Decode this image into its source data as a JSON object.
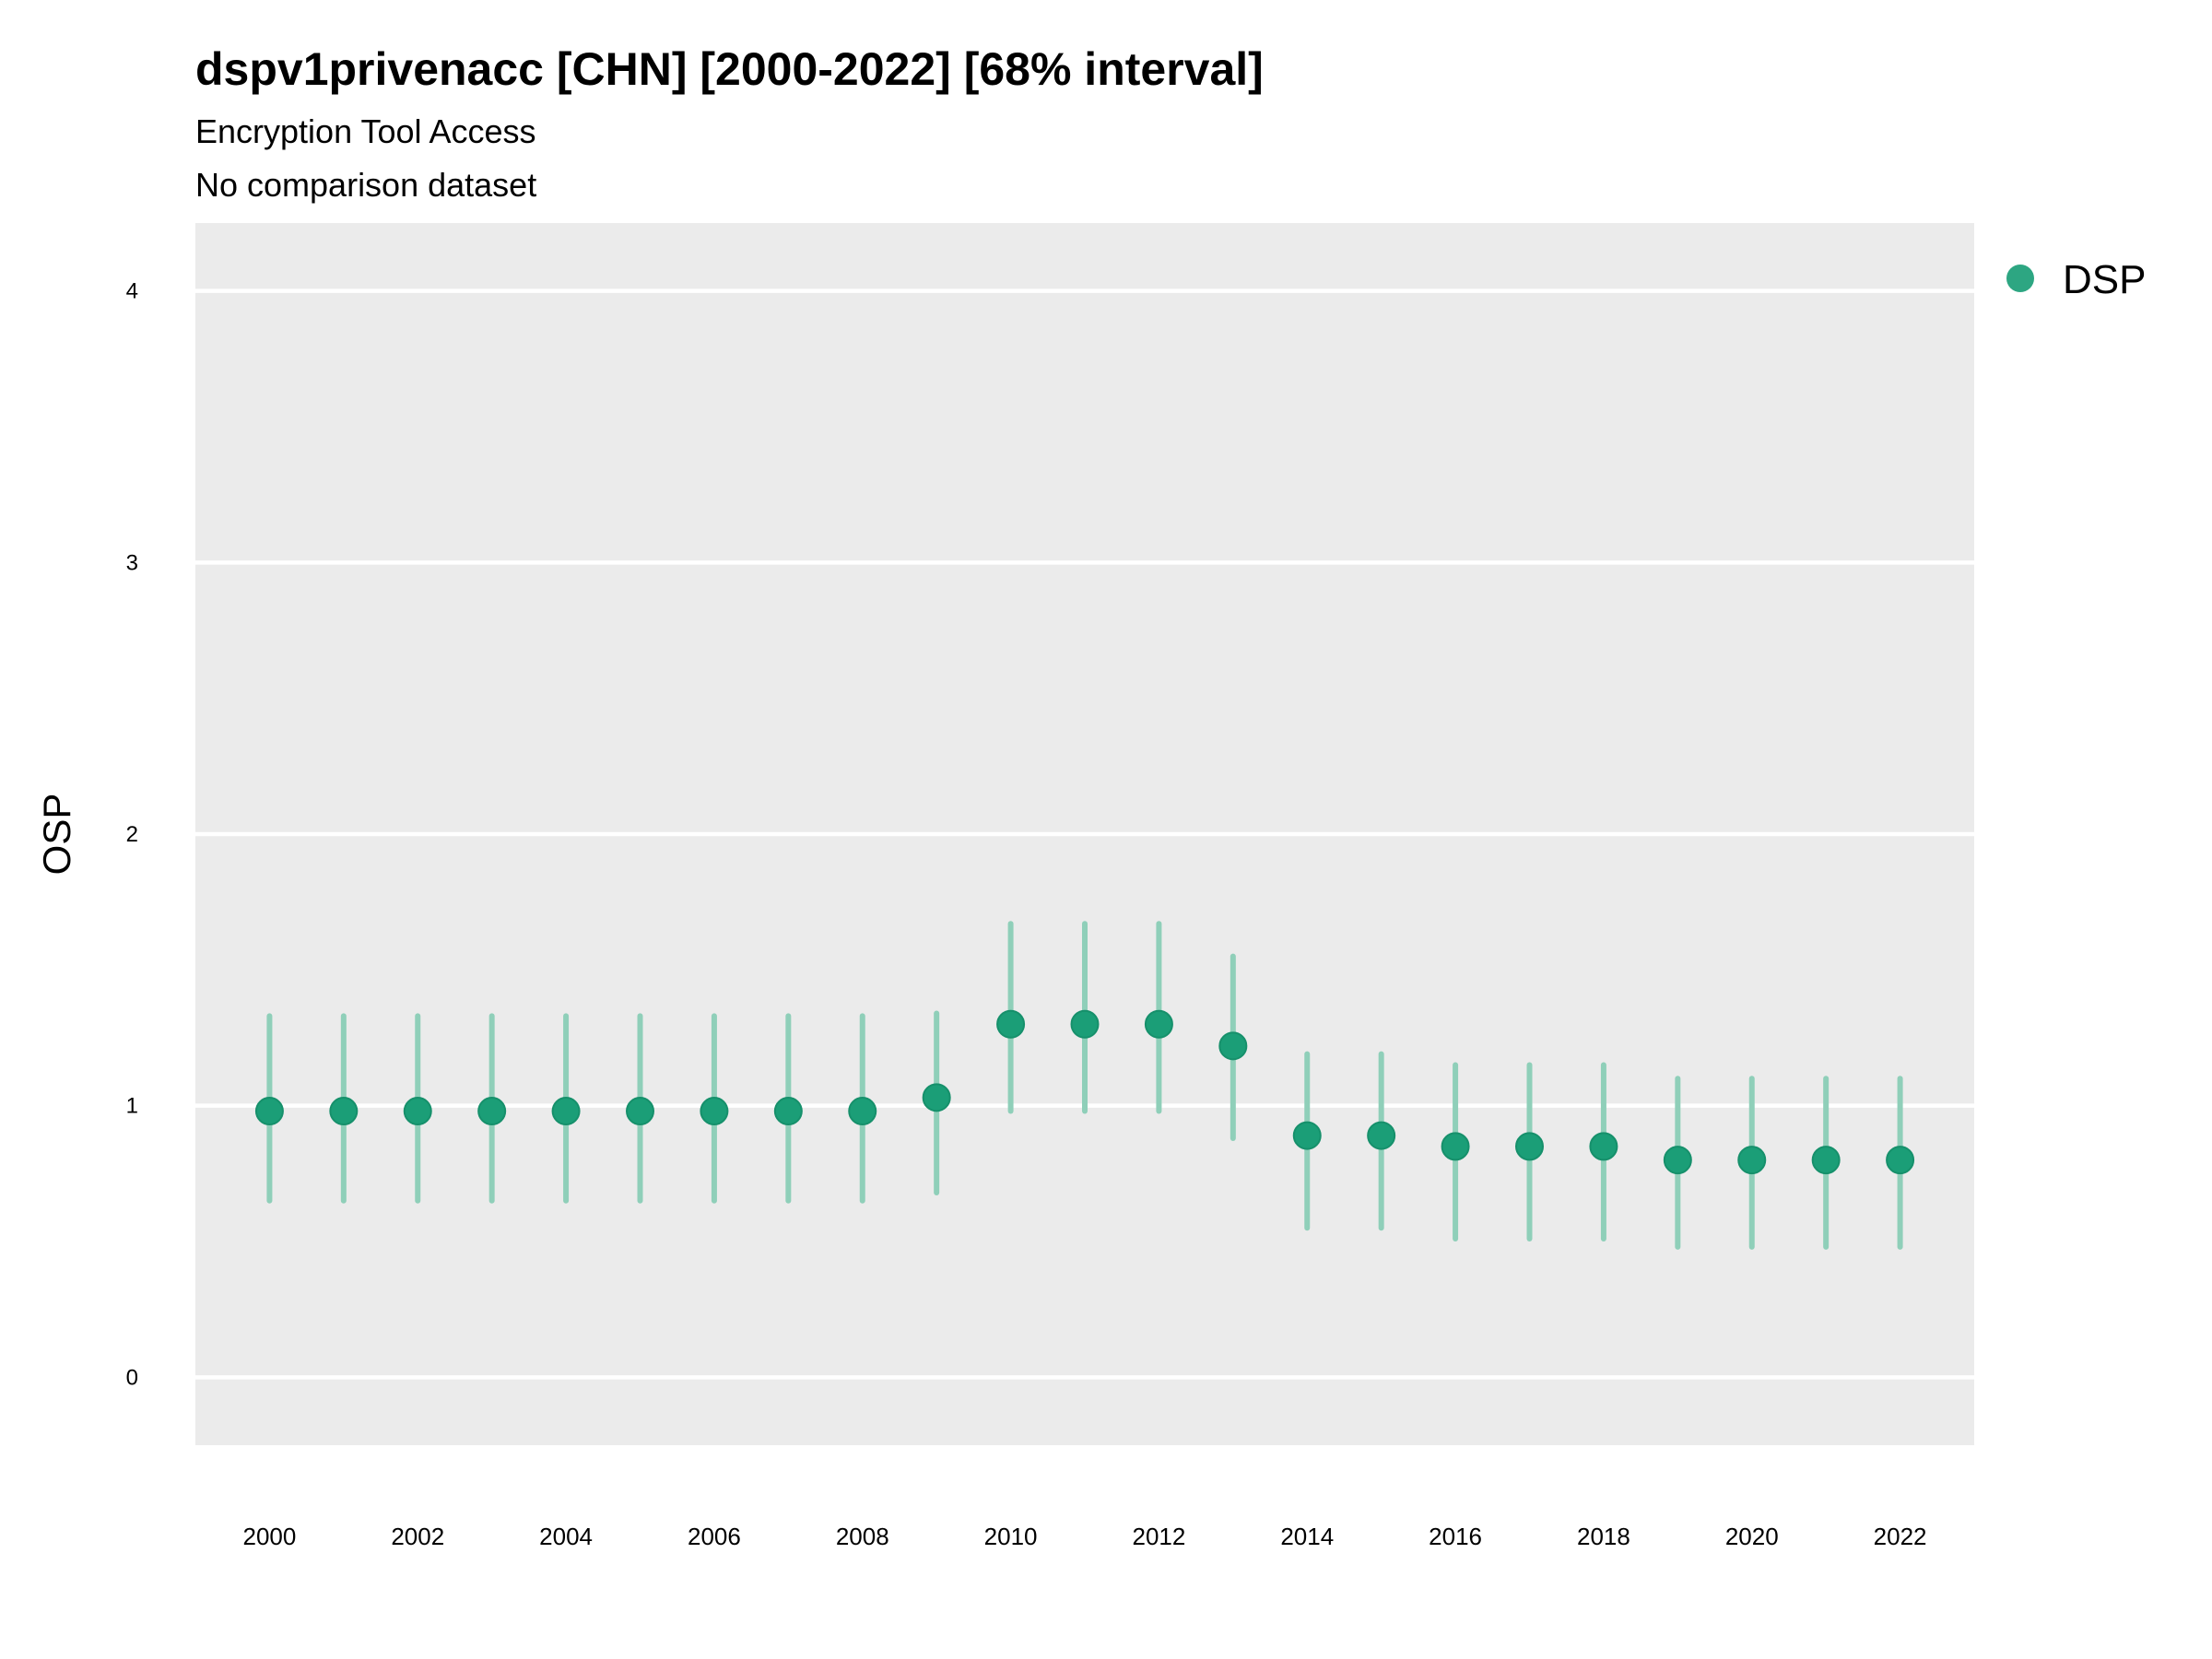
{
  "chart_data": {
    "type": "scatter",
    "title": "dspv1privenacc [CHN] [2000-2022] [68% interval]",
    "subtitle": "Encryption Tool Access",
    "subtitle2": "No comparison dataset",
    "xlabel": "",
    "ylabel": "OSP",
    "xlim": [
      1999.0,
      2023.0
    ],
    "ylim": [
      -0.25,
      4.25
    ],
    "x_ticks": [
      "2000",
      "2002",
      "2004",
      "2006",
      "2008",
      "2010",
      "2012",
      "2014",
      "2016",
      "2018",
      "2020",
      "2022"
    ],
    "y_ticks": [
      "0",
      "1",
      "2",
      "3",
      "4"
    ],
    "grid": true,
    "legend_position": "right",
    "colors": {
      "panel_background": "#ebebeb",
      "grid_line": "#ffffff",
      "point": "#1b9e77",
      "interval": "#8fcfb9"
    },
    "series": [
      {
        "name": "DSP",
        "x": [
          2000,
          2001,
          2002,
          2003,
          2004,
          2005,
          2006,
          2007,
          2008,
          2009,
          2010,
          2011,
          2012,
          2013,
          2014,
          2015,
          2016,
          2017,
          2018,
          2019,
          2020,
          2021,
          2022
        ],
        "values": [
          0.98,
          0.98,
          0.98,
          0.98,
          0.98,
          0.98,
          0.98,
          0.98,
          0.98,
          1.03,
          1.3,
          1.3,
          1.3,
          1.22,
          0.89,
          0.89,
          0.85,
          0.85,
          0.85,
          0.8,
          0.8,
          0.8,
          0.8
        ],
        "lower": [
          0.65,
          0.65,
          0.65,
          0.65,
          0.65,
          0.65,
          0.65,
          0.65,
          0.65,
          0.68,
          0.98,
          0.98,
          0.98,
          0.88,
          0.55,
          0.55,
          0.51,
          0.51,
          0.51,
          0.48,
          0.48,
          0.48,
          0.48
        ],
        "upper": [
          1.33,
          1.33,
          1.33,
          1.33,
          1.33,
          1.33,
          1.33,
          1.33,
          1.33,
          1.34,
          1.67,
          1.67,
          1.67,
          1.55,
          1.19,
          1.19,
          1.15,
          1.15,
          1.15,
          1.1,
          1.1,
          1.1,
          1.1
        ]
      }
    ]
  }
}
